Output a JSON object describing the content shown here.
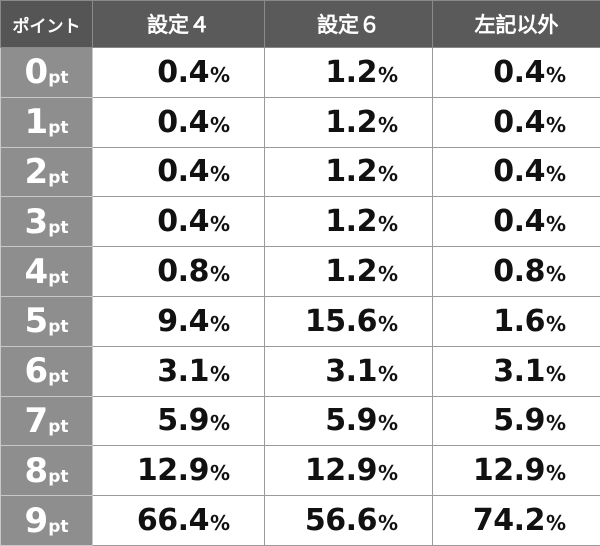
{
  "header": {
    "point": "ポイント",
    "setting4": "設定４",
    "setting6": "設定６",
    "other": "左記以外"
  },
  "rows": [
    {
      "pt_num": "0",
      "pt_unit": "pt",
      "s4": "0.4",
      "s4_unit": "%",
      "s6": "1.2",
      "s6_unit": "%",
      "other": "0.4",
      "other_unit": "%"
    },
    {
      "pt_num": "1",
      "pt_unit": "pt",
      "s4": "0.4",
      "s4_unit": "%",
      "s6": "1.2",
      "s6_unit": "%",
      "other": "0.4",
      "other_unit": "%"
    },
    {
      "pt_num": "2",
      "pt_unit": "pt",
      "s4": "0.4",
      "s4_unit": "%",
      "s6": "1.2",
      "s6_unit": "%",
      "other": "0.4",
      "other_unit": "%"
    },
    {
      "pt_num": "3",
      "pt_unit": "pt",
      "s4": "0.4",
      "s4_unit": "%",
      "s6": "1.2",
      "s6_unit": "%",
      "other": "0.4",
      "other_unit": "%"
    },
    {
      "pt_num": "4",
      "pt_unit": "pt",
      "s4": "0.8",
      "s4_unit": "%",
      "s6": "1.2",
      "s6_unit": "%",
      "other": "0.8",
      "other_unit": "%"
    },
    {
      "pt_num": "5",
      "pt_unit": "pt",
      "s4": "9.4",
      "s4_unit": "%",
      "s6": "15.6",
      "s6_unit": "%",
      "other": "1.6",
      "other_unit": "%"
    },
    {
      "pt_num": "6",
      "pt_unit": "pt",
      "s4": "3.1",
      "s4_unit": "%",
      "s6": "3.1",
      "s6_unit": "%",
      "other": "3.1",
      "other_unit": "%"
    },
    {
      "pt_num": "7",
      "pt_unit": "pt",
      "s4": "5.9",
      "s4_unit": "%",
      "s6": "5.9",
      "s6_unit": "%",
      "other": "5.9",
      "other_unit": "%"
    },
    {
      "pt_num": "8",
      "pt_unit": "pt",
      "s4": "12.9",
      "s4_unit": "%",
      "s6": "12.9",
      "s6_unit": "%",
      "other": "12.9",
      "other_unit": "%"
    },
    {
      "pt_num": "9",
      "pt_unit": "pt",
      "s4": "66.4",
      "s4_unit": "%",
      "s6": "56.6",
      "s6_unit": "%",
      "other": "74.2",
      "other_unit": "%"
    }
  ],
  "colors": {
    "header_bg": "#5a5a5a",
    "point_cell_bg": "#8e8e8e",
    "value_cell_bg": "#ffffff",
    "border": "#9a9a9a"
  }
}
